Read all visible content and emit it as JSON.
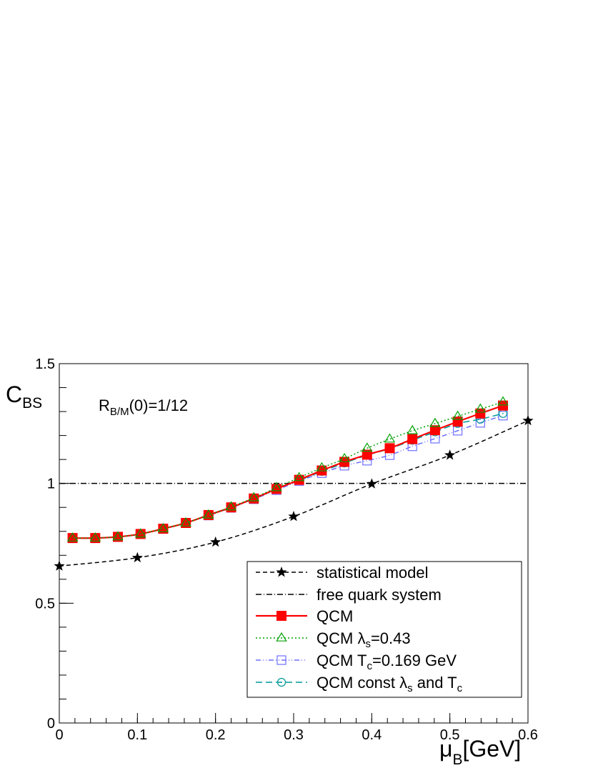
{
  "chart_data": {
    "type": "line",
    "xlabel": {
      "main": "μ",
      "sub": "B",
      "tail": "[GeV]"
    },
    "ylabel": {
      "main": "C",
      "sub": "BS"
    },
    "annotation": {
      "main": "R",
      "sub": "B/M",
      "tail": "(0)=1/12"
    },
    "xlim": [
      0,
      0.6
    ],
    "ylim": [
      0,
      1.5
    ],
    "x_ticks": [
      "0",
      "0.1",
      "0.2",
      "0.3",
      "0.4",
      "0.5",
      "0.6"
    ],
    "y_ticks": [
      "0",
      "0.5",
      "1",
      "1.5"
    ],
    "x_tick_values": [
      0,
      0.1,
      0.2,
      0.3,
      0.4,
      0.5,
      0.6
    ],
    "y_tick_values": [
      0,
      0.5,
      1,
      1.5
    ],
    "grid": false,
    "legend_position": "bottom-right",
    "series": [
      {
        "name": "statistical model",
        "color": "#000000",
        "line": "dashed",
        "marker": "star",
        "x": [
          0,
          0.1,
          0.2,
          0.3,
          0.4,
          0.5,
          0.6
        ],
        "y": [
          0.655,
          0.69,
          0.755,
          0.862,
          0.998,
          1.118,
          1.262
        ]
      },
      {
        "name": "free quark system",
        "color": "#000000",
        "line": "dashdot",
        "marker": "none",
        "x": [
          0,
          0.6
        ],
        "y": [
          1.0,
          1.0
        ]
      },
      {
        "name": "QCM",
        "color": "#ff0000",
        "line": "solid",
        "marker": "filled-square",
        "x": [
          0.017,
          0.046,
          0.075,
          0.104,
          0.133,
          0.162,
          0.191,
          0.22,
          0.249,
          0.278,
          0.307,
          0.336,
          0.365,
          0.394,
          0.423,
          0.452,
          0.481,
          0.51,
          0.539,
          0.568
        ],
        "y": [
          0.772,
          0.772,
          0.777,
          0.789,
          0.811,
          0.835,
          0.868,
          0.9,
          0.937,
          0.977,
          1.015,
          1.054,
          1.09,
          1.12,
          1.147,
          1.185,
          1.222,
          1.258,
          1.292,
          1.325
        ]
      },
      {
        "name": "QCM λs=0.43",
        "label_parts": {
          "pre": "QCM λ",
          "sub": "s",
          "post": "=0.43"
        },
        "color": "#00a000",
        "line": "dotted",
        "marker": "open-triangle",
        "x": [
          0.017,
          0.046,
          0.075,
          0.104,
          0.133,
          0.162,
          0.191,
          0.22,
          0.249,
          0.278,
          0.307,
          0.336,
          0.365,
          0.394,
          0.423,
          0.452,
          0.481,
          0.51,
          0.539,
          0.568
        ],
        "y": [
          0.772,
          0.772,
          0.777,
          0.789,
          0.811,
          0.835,
          0.868,
          0.902,
          0.94,
          0.982,
          1.024,
          1.065,
          1.103,
          1.147,
          1.185,
          1.22,
          1.25,
          1.28,
          1.31,
          1.34
        ]
      },
      {
        "name": "QCM Tc=0.169 GeV",
        "label_parts": {
          "pre": "QCM T",
          "sub": "c",
          "post": "=0.169 GeV"
        },
        "color": "#6f6fff",
        "line": "dashdotdot",
        "marker": "open-square",
        "x": [
          0.017,
          0.046,
          0.075,
          0.104,
          0.133,
          0.162,
          0.191,
          0.22,
          0.249,
          0.278,
          0.307,
          0.336,
          0.365,
          0.394,
          0.423,
          0.452,
          0.481,
          0.51,
          0.539,
          0.568
        ],
        "y": [
          0.772,
          0.772,
          0.777,
          0.789,
          0.811,
          0.835,
          0.866,
          0.898,
          0.934,
          0.972,
          1.01,
          1.043,
          1.074,
          1.095,
          1.118,
          1.155,
          1.187,
          1.22,
          1.253,
          1.283
        ]
      },
      {
        "name": "QCM const λs and Tc",
        "label_parts": {
          "pre": "QCM const λ",
          "sub": "s",
          "mid": " and T",
          "sub2": "c"
        },
        "color": "#009999",
        "line": "longdash",
        "marker": "open-circle",
        "x": [
          0.017,
          0.046,
          0.075,
          0.104,
          0.133,
          0.162,
          0.191,
          0.22,
          0.249,
          0.278,
          0.307,
          0.336,
          0.365,
          0.394,
          0.423,
          0.452,
          0.481,
          0.51,
          0.539,
          0.568
        ],
        "y": [
          0.772,
          0.772,
          0.777,
          0.789,
          0.811,
          0.835,
          0.867,
          0.9,
          0.936,
          0.976,
          1.013,
          1.05,
          1.085,
          1.118,
          1.145,
          1.18,
          1.215,
          1.25,
          1.268,
          1.292
        ]
      }
    ]
  }
}
